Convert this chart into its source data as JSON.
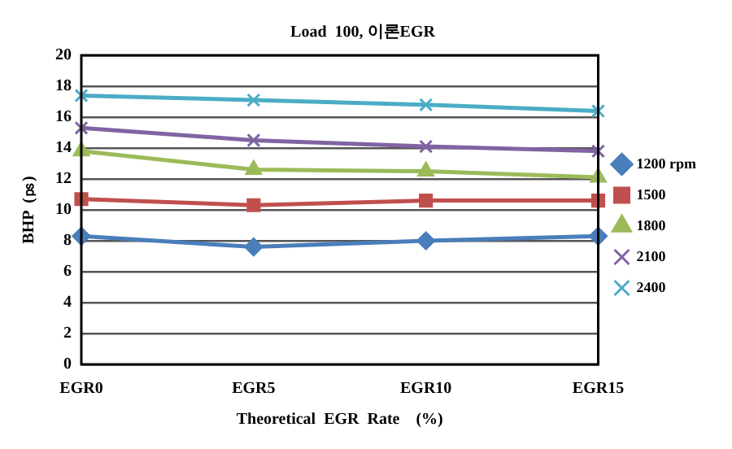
{
  "chart_data": {
    "type": "line",
    "title": "Load  100, 이론EGR",
    "xlabel": "Theoretical  EGR  Rate    (%)",
    "ylabel": "BHP  (㎰)",
    "categories": [
      "EGR0",
      "EGR5",
      "EGR10",
      "EGR15"
    ],
    "series": [
      {
        "name": "1200 rpm",
        "color": "#4a7ebb",
        "marker": "diamond",
        "values": [
          8.3,
          7.6,
          8.0,
          8.3
        ]
      },
      {
        "name": "1500",
        "color": "#c0504d",
        "marker": "square",
        "values": [
          10.7,
          10.3,
          10.6,
          10.6
        ]
      },
      {
        "name": "1800",
        "color": "#9bbb59",
        "marker": "triangle",
        "values": [
          13.8,
          12.6,
          12.5,
          12.1
        ]
      },
      {
        "name": "2100",
        "color": "#8064a2",
        "marker": "cross",
        "values": [
          15.3,
          14.5,
          14.1,
          13.8
        ]
      },
      {
        "name": "2400",
        "color": "#4bacc6",
        "marker": "cross",
        "values": [
          17.4,
          17.1,
          16.8,
          16.4
        ]
      }
    ],
    "ylim": [
      0,
      20
    ],
    "yticks": [
      0,
      2,
      4,
      6,
      8,
      10,
      12,
      14,
      16,
      18,
      20
    ],
    "grid": "y",
    "legend": "right",
    "line_style": "solid"
  }
}
